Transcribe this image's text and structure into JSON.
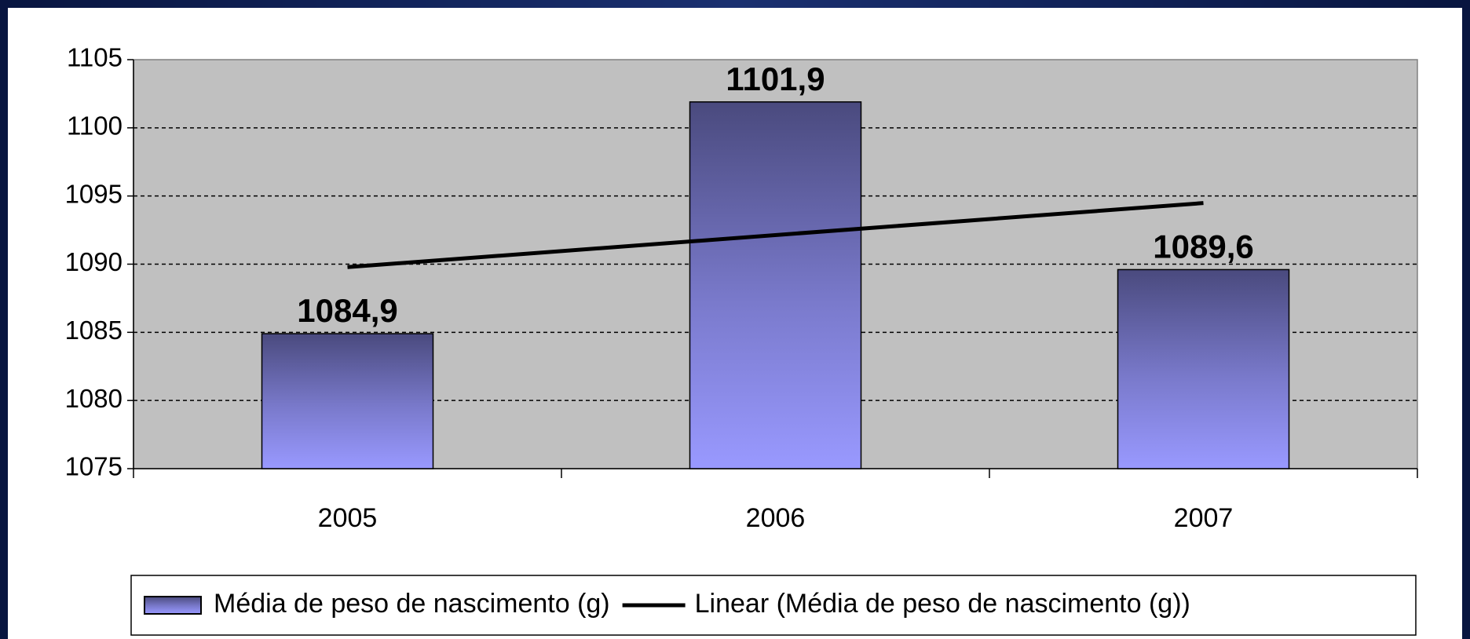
{
  "chart_data": {
    "type": "bar",
    "categories": [
      "2005",
      "2006",
      "2007"
    ],
    "series": [
      {
        "name": "Média de peso de nascimento (g)",
        "color": "#9999ff",
        "values": [
          1084.9,
          1101.9,
          1089.6
        ],
        "value_labels": [
          "1084,9",
          "1101,9",
          "1089,6"
        ]
      }
    ],
    "trendline": {
      "name": "Linear (Média de peso de nascimento (g))",
      "type": "linear",
      "color": "#000000"
    },
    "ylim": [
      1075,
      1105
    ],
    "yticks": [
      1075,
      1080,
      1085,
      1090,
      1095,
      1100,
      1105
    ],
    "grid": true,
    "legend": "bottom"
  }
}
